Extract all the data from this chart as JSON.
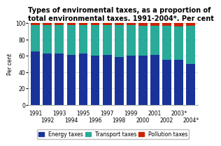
{
  "title": "Types of enviromental taxes, as a proportion of\ntotal environmental taxes. 1991-2004*. Per cent",
  "ylabel": "Per cent",
  "years": [
    "1991",
    "1992",
    "1993",
    "1994",
    "1995",
    "1996",
    "1997",
    "1998",
    "1999",
    "2000",
    "2001",
    "2002",
    "2003*",
    "2004*"
  ],
  "energy": [
    65,
    63,
    63,
    61,
    63,
    60,
    61,
    59,
    60,
    60,
    61,
    55,
    55,
    50
  ],
  "transport": [
    33,
    35,
    35,
    37,
    35,
    38,
    37,
    39,
    38,
    37,
    36,
    42,
    41,
    47
  ],
  "pollution": [
    2,
    2,
    2,
    2,
    2,
    2,
    2,
    2,
    2,
    3,
    3,
    3,
    4,
    3
  ],
  "energy_color": "#1a3399",
  "transport_color": "#2aaa99",
  "pollution_color": "#cc2200",
  "bg_color": "#ffffff",
  "ylim": [
    0,
    100
  ],
  "yticks": [
    0,
    20,
    40,
    60,
    80,
    100
  ],
  "legend_labels": [
    "Energy taxes",
    "Transport taxes",
    "Pollution taxes"
  ],
  "title_fontsize": 7.0,
  "axis_fontsize": 5.5,
  "legend_fontsize": 5.5
}
